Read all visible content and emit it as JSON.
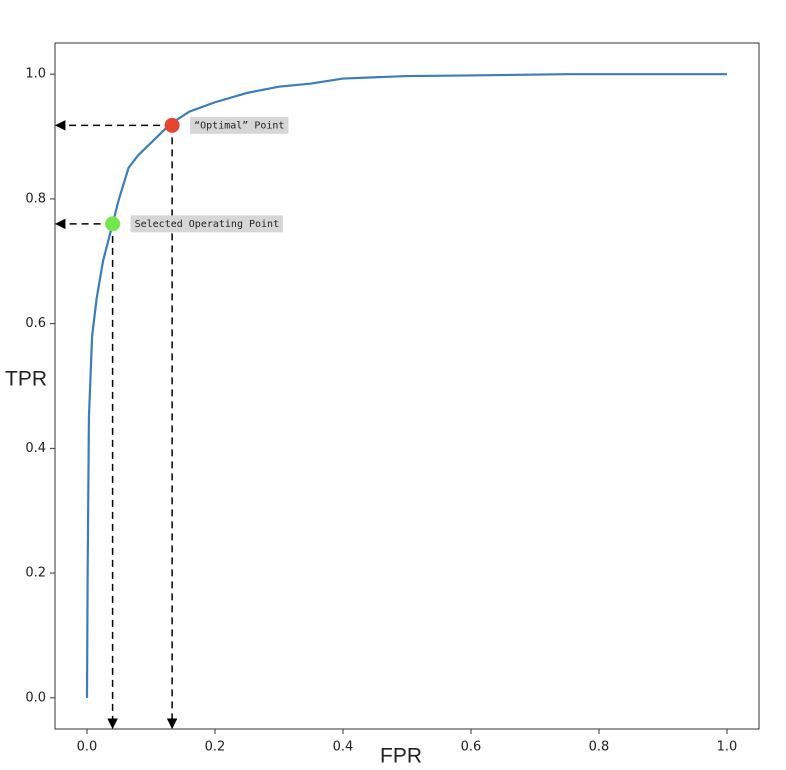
{
  "chart_data": {
    "type": "line",
    "x_label": "FPR",
    "y_label": "TPR",
    "x": [
      0,
      0.001,
      0.003,
      0.008,
      0.015,
      0.025,
      0.04,
      0.05,
      0.065,
      0.08,
      0.1,
      0.13,
      0.16,
      0.2,
      0.25,
      0.3,
      0.35,
      0.4,
      0.5,
      0.6,
      0.75,
      1.0
    ],
    "values": [
      0,
      0.2,
      0.45,
      0.58,
      0.64,
      0.7,
      0.76,
      0.8,
      0.85,
      0.87,
      0.89,
      0.92,
      0.94,
      0.955,
      0.97,
      0.98,
      0.985,
      0.993,
      0.997,
      0.998,
      1.0,
      1.0
    ],
    "color": "#3a7dbb",
    "xlim": [
      -0.05,
      1.05
    ],
    "ylim": [
      -0.05,
      1.05
    ],
    "xticks": [
      {
        "value": 0,
        "label": "0.0"
      },
      0.2,
      0.4,
      0.6,
      0.8,
      {
        "value": 1,
        "label": "1.0"
      }
    ],
    "yticks": [
      {
        "value": 0,
        "label": "0.0"
      },
      0.2,
      0.4,
      0.6,
      0.8,
      {
        "value": 1,
        "label": "1.0"
      }
    ],
    "annotations": [
      {
        "text": "“Optimal” Point",
        "x": 0.133,
        "y": 0.918,
        "color": "#e5452d"
      },
      {
        "text": "Selected Operating Point",
        "x": 0.04,
        "y": 0.76,
        "color": "#72e84e"
      }
    ]
  }
}
